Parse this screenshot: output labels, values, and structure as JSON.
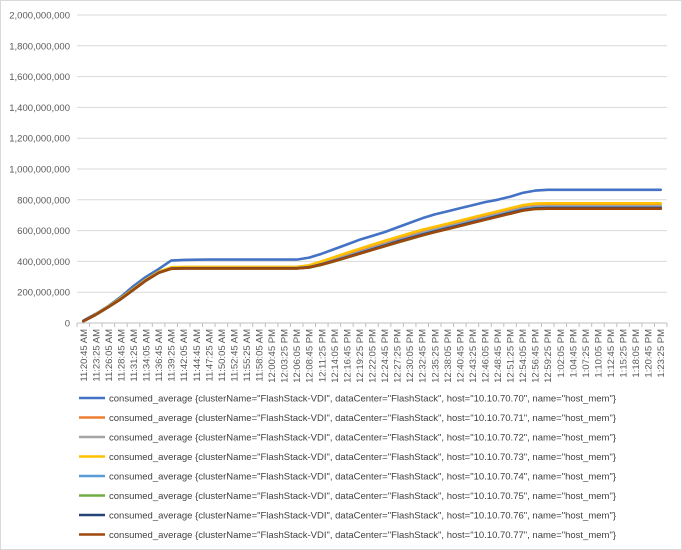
{
  "chart_data": {
    "type": "line",
    "title": "",
    "xlabel": "",
    "ylabel": "",
    "ylim": [
      0,
      2000000000
    ],
    "y_ticks": [
      0,
      200000000,
      400000000,
      600000000,
      800000000,
      1000000000,
      1200000000,
      1400000000,
      1600000000,
      1800000000,
      2000000000
    ],
    "y_tick_labels": [
      "0",
      "200,000,000",
      "400,000,000",
      "600,000,000",
      "800,000,000",
      "1,000,000,000",
      "1,200,000,000",
      "1,400,000,000",
      "1,600,000,000",
      "1,800,000,000",
      "2,000,000,000"
    ],
    "x_tick_labels": [
      "11:20:45 AM",
      "11:23:25 AM",
      "11:26:05 AM",
      "11:28:45 AM",
      "11:31:25 AM",
      "11:34:05 AM",
      "11:36:45 AM",
      "11:39:25 AM",
      "11:42:05 AM",
      "11:44:45 AM",
      "11:47:25 AM",
      "11:50:05 AM",
      "11:52:45 AM",
      "11:55:25 AM",
      "11:58:05 AM",
      "12:00:45 PM",
      "12:03:25 PM",
      "12:06:05 PM",
      "12:08:45 PM",
      "12:11:25 PM",
      "12:14:05 PM",
      "12:16:45 PM",
      "12:19:25 PM",
      "12:22:05 PM",
      "12:24:45 PM",
      "12:27:25 PM",
      "12:30:05 PM",
      "12:32:45 PM",
      "12:35:25 PM",
      "12:38:05 PM",
      "12:40:45 PM",
      "12:43:25 PM",
      "12:46:05 PM",
      "12:48:45 PM",
      "12:51:25 PM",
      "12:54:05 PM",
      "12:56:45 PM",
      "12:59:25 PM",
      "1:02:05 PM",
      "1:04:45 PM",
      "1:07:25 PM",
      "1:10:05 PM",
      "1:12:45 PM",
      "1:15:25 PM",
      "1:18:05 PM",
      "1:20:45 PM",
      "1:23:25 PM"
    ],
    "grid": "horizontal",
    "legend_position": "bottom",
    "series": [
      {
        "name": "consumed_average {clusterName=\"FlashStack-VDI\", dataCenter=\"FlashStack\", host=\"10.10.70.70\", name=\"host_mem\"}",
        "color": "#4472C4",
        "values": [
          15000000,
          60000000,
          110000000,
          170000000,
          240000000,
          300000000,
          350000000,
          405000000,
          410000000,
          411000000,
          412000000,
          412000000,
          412000000,
          412000000,
          412000000,
          412000000,
          412000000,
          412000000,
          425000000,
          450000000,
          480000000,
          510000000,
          540000000,
          565000000,
          590000000,
          620000000,
          650000000,
          680000000,
          705000000,
          725000000,
          745000000,
          765000000,
          785000000,
          800000000,
          820000000,
          845000000,
          860000000,
          865000000,
          865000000,
          865000000,
          865000000,
          865000000,
          865000000,
          865000000,
          865000000,
          865000000,
          865000000
        ]
      },
      {
        "name": "consumed_average {clusterName=\"FlashStack-VDI\", dataCenter=\"FlashStack\", host=\"10.10.70.71\", name=\"host_mem\"}",
        "color": "#ED7D31",
        "values": [
          12000000,
          55000000,
          105000000,
          160000000,
          220000000,
          280000000,
          330000000,
          358000000,
          360000000,
          360000000,
          360000000,
          360000000,
          360000000,
          360000000,
          360000000,
          360000000,
          360000000,
          360000000,
          368000000,
          390000000,
          415000000,
          440000000,
          465000000,
          490000000,
          515000000,
          540000000,
          565000000,
          590000000,
          610000000,
          630000000,
          650000000,
          670000000,
          690000000,
          710000000,
          730000000,
          750000000,
          760000000,
          762000000,
          762000000,
          762000000,
          762000000,
          762000000,
          762000000,
          762000000,
          762000000,
          762000000,
          762000000
        ]
      },
      {
        "name": "consumed_average {clusterName=\"FlashStack-VDI\", dataCenter=\"FlashStack\", host=\"10.10.70.72\", name=\"host_mem\"}",
        "color": "#A5A5A5",
        "values": [
          12000000,
          55000000,
          105000000,
          158000000,
          218000000,
          278000000,
          328000000,
          355000000,
          357000000,
          357000000,
          357000000,
          357000000,
          357000000,
          357000000,
          357000000,
          357000000,
          357000000,
          357000000,
          365000000,
          385000000,
          410000000,
          435000000,
          460000000,
          485000000,
          510000000,
          535000000,
          560000000,
          585000000,
          605000000,
          625000000,
          645000000,
          665000000,
          685000000,
          705000000,
          725000000,
          745000000,
          756000000,
          758000000,
          758000000,
          758000000,
          758000000,
          758000000,
          758000000,
          758000000,
          758000000,
          758000000,
          758000000
        ]
      },
      {
        "name": "consumed_average {clusterName=\"FlashStack-VDI\", dataCenter=\"FlashStack\", host=\"10.10.70.73\", name=\"host_mem\"}",
        "color": "#FFC000",
        "values": [
          12000000,
          57000000,
          107000000,
          162000000,
          222000000,
          282000000,
          333000000,
          362000000,
          364000000,
          364000000,
          364000000,
          364000000,
          364000000,
          364000000,
          364000000,
          364000000,
          364000000,
          364000000,
          375000000,
          400000000,
          428000000,
          455000000,
          482000000,
          508000000,
          533000000,
          558000000,
          582000000,
          605000000,
          625000000,
          645000000,
          665000000,
          685000000,
          705000000,
          725000000,
          745000000,
          765000000,
          775000000,
          777000000,
          777000000,
          777000000,
          777000000,
          777000000,
          777000000,
          777000000,
          777000000,
          777000000,
          777000000
        ]
      },
      {
        "name": "consumed_average {clusterName=\"FlashStack-VDI\", dataCenter=\"FlashStack\", host=\"10.10.70.74\", name=\"host_mem\"}",
        "color": "#5B9BD5",
        "values": [
          12000000,
          54000000,
          104000000,
          157000000,
          217000000,
          277000000,
          327000000,
          354000000,
          356000000,
          356000000,
          356000000,
          356000000,
          356000000,
          356000000,
          356000000,
          356000000,
          356000000,
          356000000,
          363000000,
          382000000,
          405000000,
          430000000,
          455000000,
          480000000,
          505000000,
          530000000,
          553000000,
          577000000,
          598000000,
          618000000,
          638000000,
          658000000,
          678000000,
          698000000,
          718000000,
          738000000,
          748000000,
          750000000,
          750000000,
          750000000,
          750000000,
          750000000,
          750000000,
          750000000,
          750000000,
          750000000,
          750000000
        ]
      },
      {
        "name": "consumed_average {clusterName=\"FlashStack-VDI\", dataCenter=\"FlashStack\", host=\"10.10.70.75\", name=\"host_mem\"}",
        "color": "#70AD47",
        "values": [
          12000000,
          53000000,
          103000000,
          155000000,
          215000000,
          275000000,
          325000000,
          352000000,
          354000000,
          354000000,
          354000000,
          354000000,
          354000000,
          354000000,
          354000000,
          354000000,
          354000000,
          354000000,
          360000000,
          378000000,
          400000000,
          425000000,
          450000000,
          475000000,
          498000000,
          522000000,
          545000000,
          568000000,
          590000000,
          610000000,
          630000000,
          650000000,
          670000000,
          690000000,
          710000000,
          730000000,
          740000000,
          742000000,
          742000000,
          742000000,
          742000000,
          742000000,
          742000000,
          742000000,
          742000000,
          742000000,
          742000000
        ]
      },
      {
        "name": "consumed_average {clusterName=\"FlashStack-VDI\", dataCenter=\"FlashStack\", host=\"10.10.70.76\", name=\"host_mem\"}",
        "color": "#264478",
        "values": [
          12000000,
          54000000,
          104000000,
          156000000,
          216000000,
          276000000,
          326000000,
          353000000,
          355000000,
          355000000,
          355000000,
          355000000,
          355000000,
          355000000,
          355000000,
          355000000,
          355000000,
          355000000,
          362000000,
          381000000,
          404000000,
          428000000,
          452000000,
          477000000,
          502000000,
          527000000,
          550000000,
          573000000,
          594000000,
          614000000,
          634000000,
          654000000,
          674000000,
          694000000,
          714000000,
          734000000,
          744000000,
          746000000,
          746000000,
          746000000,
          746000000,
          746000000,
          746000000,
          746000000,
          746000000,
          746000000,
          746000000
        ]
      },
      {
        "name": "consumed_average {clusterName=\"FlashStack-VDI\", dataCenter=\"FlashStack\", host=\"10.10.70.77\", name=\"host_mem\"}",
        "color": "#9E480E",
        "values": [
          12000000,
          54000000,
          104000000,
          156000000,
          216000000,
          276000000,
          326000000,
          352000000,
          354000000,
          354000000,
          354000000,
          354000000,
          354000000,
          354000000,
          354000000,
          354000000,
          354000000,
          354000000,
          361000000,
          379000000,
          402000000,
          426000000,
          450000000,
          474000000,
          498000000,
          523000000,
          546000000,
          569000000,
          590000000,
          610000000,
          630000000,
          650000000,
          670000000,
          690000000,
          710000000,
          730000000,
          740000000,
          742000000,
          742000000,
          742000000,
          742000000,
          742000000,
          742000000,
          742000000,
          742000000,
          742000000,
          742000000
        ]
      }
    ]
  }
}
